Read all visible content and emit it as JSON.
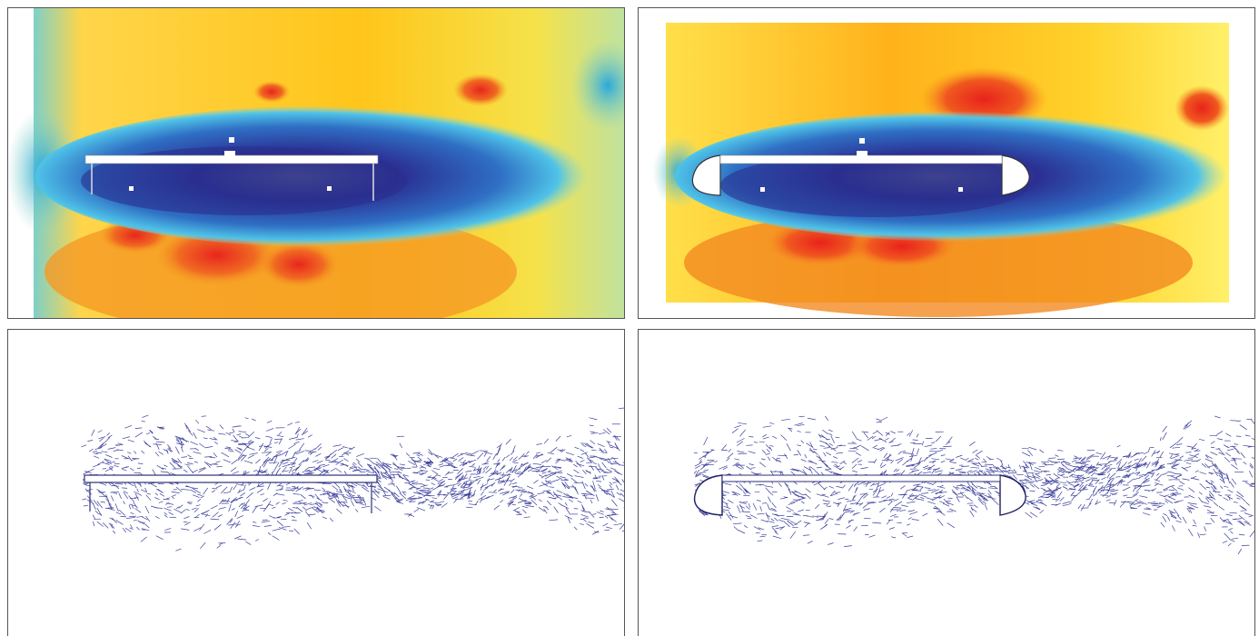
{
  "figure": {
    "panels": [
      {
        "id": "top-left",
        "kind": "contour",
        "deck": "plain-deck",
        "colors": {
          "ambient_left": "#ffd000",
          "ambient_right": "#f2e24a",
          "wake": "#2a2e8e",
          "wake_core": "#5a5a8e",
          "below": "#ef4a26",
          "inflow": "#39aee0"
        }
      },
      {
        "id": "top-right",
        "kind": "contour",
        "deck": "fairing-deck",
        "colors": {
          "ambient_left": "#ffb000",
          "ambient_right": "#ffe44a",
          "wake": "#2a2e8e",
          "wake_core": "#5a5a8e",
          "below": "#ef3a20",
          "inflow": "#39aee0"
        }
      },
      {
        "id": "bottom-left",
        "kind": "vector",
        "deck": "plain-deck",
        "colors": {
          "vector": "#3b3f9a"
        }
      },
      {
        "id": "bottom-right",
        "kind": "vector",
        "deck": "fairing-deck",
        "colors": {
          "vector": "#3b3f9a"
        }
      }
    ]
  }
}
